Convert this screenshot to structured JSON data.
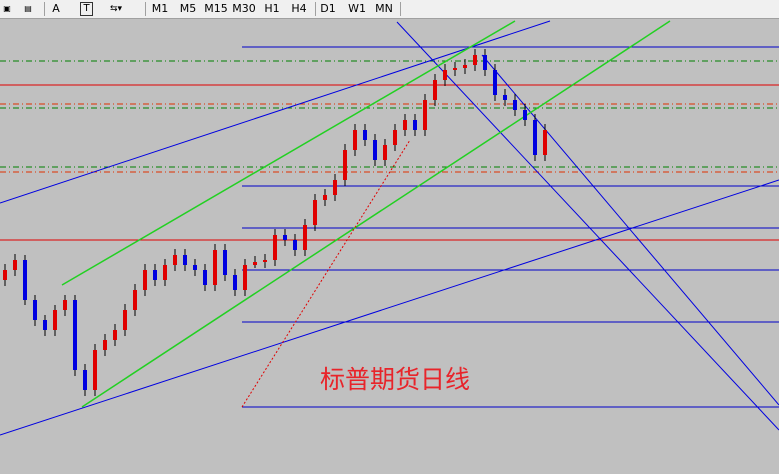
{
  "toolbar": {
    "tools": [
      "A",
      "T"
    ],
    "periods": [
      "M1",
      "M5",
      "M15",
      "M30",
      "H1",
      "H4",
      "D1",
      "W1",
      "MN"
    ]
  },
  "chart": {
    "annotation": "标普期货日线"
  }
}
